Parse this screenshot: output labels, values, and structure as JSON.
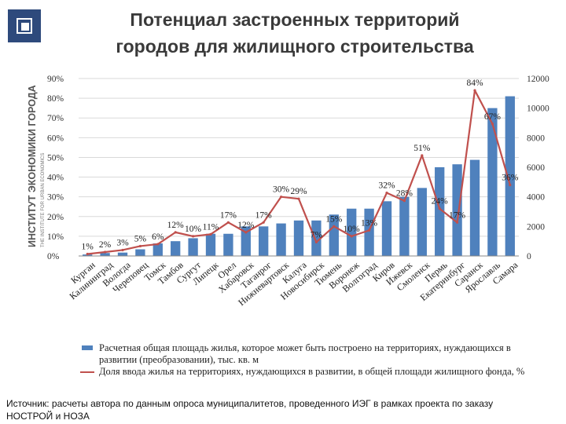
{
  "header": {
    "title_line1": "Потенциал застроенных территорий",
    "title_line2": "городов для жилищного строительства"
  },
  "org": {
    "name": "ИНСТИТУТ ЭКОНОМИКИ ГОРОДА",
    "subname": "THE INSTITUTE FOR URBAN ECONOMICS"
  },
  "chart_data": {
    "type": "bar",
    "categories": [
      "Курган",
      "Калининград",
      "Вологда",
      "Череповец",
      "Томск",
      "Тамбов",
      "Сургут",
      "Липецк",
      "Орел",
      "Хабаровск",
      "Таганрог",
      "Нижневартовск",
      "Калуга",
      "Новосибирск",
      "Тюмень",
      "Воронеж",
      "Волгоград",
      "Киров",
      "Ижевск",
      "Смоленск",
      "Пермь",
      "Екатеринбург",
      "Саранск",
      "Ярославль",
      "Самара"
    ],
    "series": [
      {
        "name": "Расчетная общая площадь жилья, которое может быть построено на территориях, нуждающихся в развитии (преобразовании), тыс. кв. м",
        "type": "bar",
        "axis": "right",
        "color": "#4f81bd",
        "values": [
          100,
          200,
          230,
          450,
          850,
          1000,
          1200,
          1500,
          1500,
          2000,
          2000,
          2200,
          2400,
          2400,
          2800,
          3200,
          3200,
          3700,
          4000,
          4600,
          6000,
          6200,
          6500,
          10000,
          10800
        ]
      },
      {
        "name": "Доля ввода жилья на территориях, нуждающихся в развитии, в общей площади жилищного фонда, %",
        "type": "line",
        "axis": "left",
        "color": "#c0504d",
        "values": [
          1,
          2,
          3,
          5,
          6,
          12,
          10,
          11,
          17,
          12,
          17,
          30,
          29,
          7,
          15,
          10,
          13,
          32,
          28,
          51,
          24,
          17,
          84,
          67,
          36
        ]
      }
    ],
    "data_labels": [
      "1%",
      "2%",
      "3%",
      "5%",
      "6%",
      "12%",
      "10%",
      "11%",
      "17%",
      "12%",
      "17%",
      "30%",
      "29%",
      "7%",
      "15%",
      "10%",
      "13%",
      "32%",
      "28%",
      "51%",
      "24%",
      "17%",
      "84%",
      "67%",
      "36%"
    ],
    "left_ticks": [
      "0%",
      "10%",
      "20%",
      "30%",
      "40%",
      "50%",
      "60%",
      "70%",
      "80%",
      "90%"
    ],
    "left_range": [
      0,
      90
    ],
    "right_ticks": [
      "0",
      "2000",
      "4000",
      "6000",
      "8000",
      "10000",
      "12000"
    ],
    "right_range": [
      0,
      12000
    ],
    "grid": true,
    "legend_position": "bottom"
  },
  "source": {
    "line1": "Источник: расчеты автора по данным опроса муниципалитетов, проведенного ИЭГ в рамках проекта по заказу",
    "line2": "НОСТРОЙ и НОЗА"
  }
}
